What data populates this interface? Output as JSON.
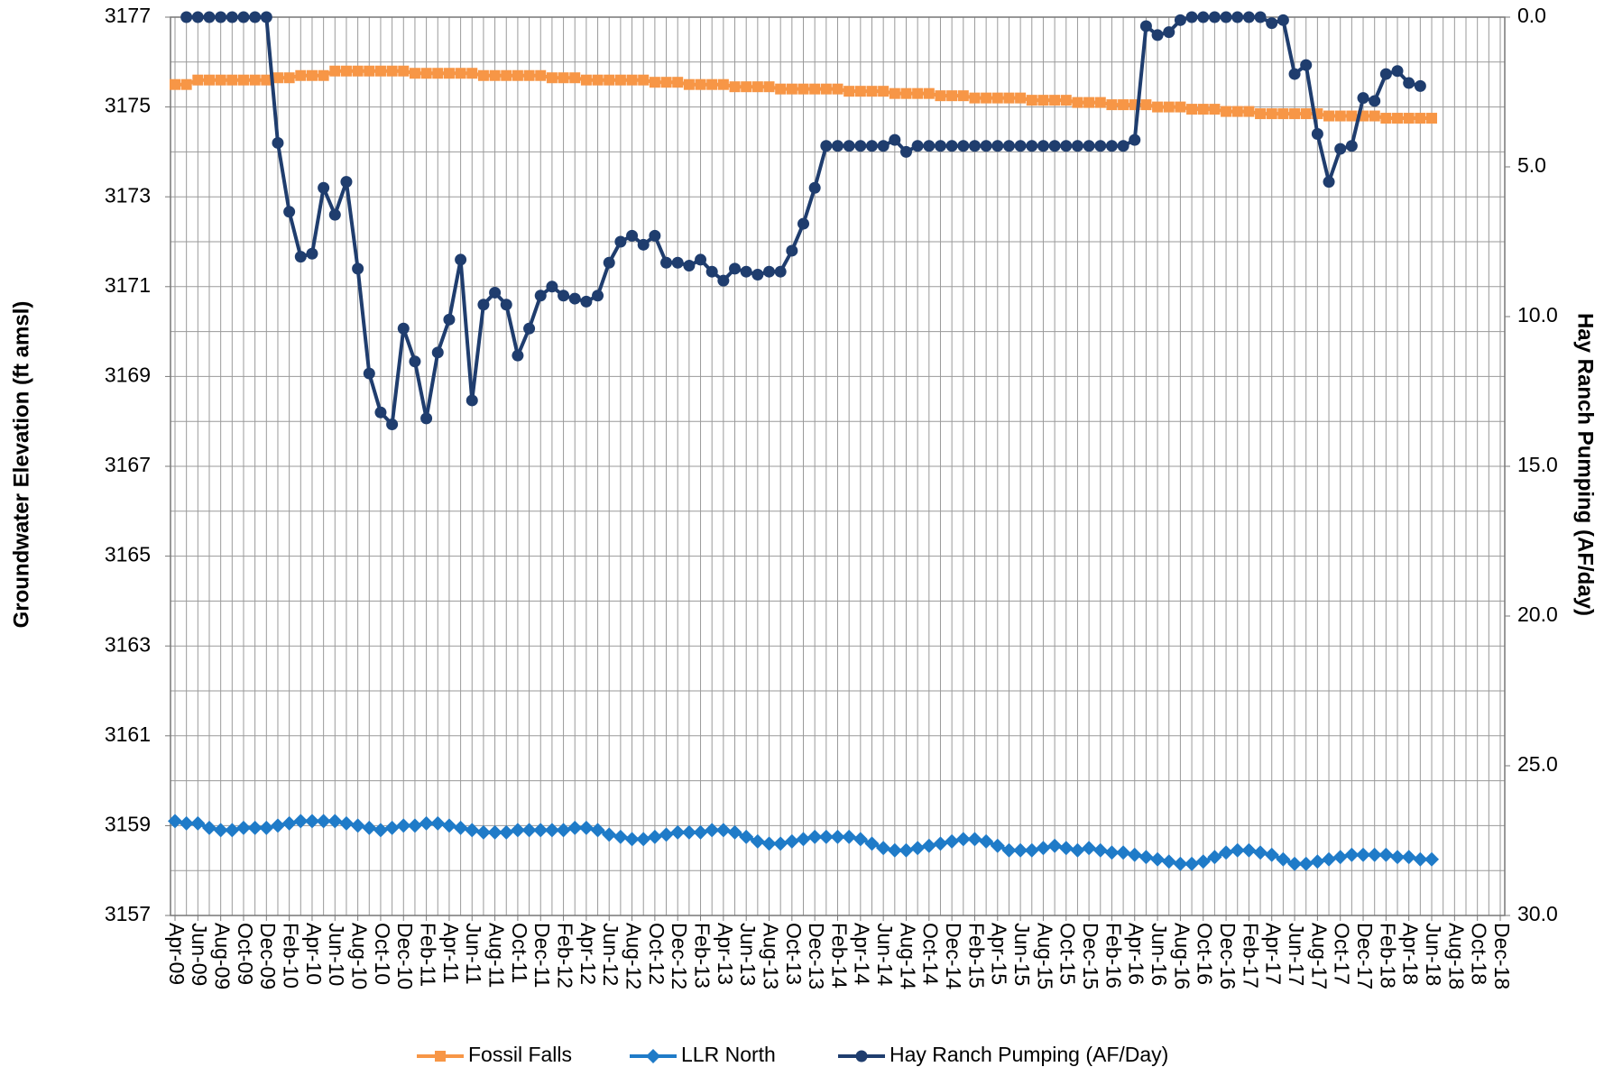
{
  "chart_data": {
    "type": "line",
    "y_label": "Groundwater Elevation (ft amsl)",
    "y2_label": "Hay Ranch Pumping (AF/day)",
    "x": [
      "2009-04",
      "2009-05",
      "2009-06",
      "2009-07",
      "2009-08",
      "2009-09",
      "2009-10",
      "2009-11",
      "2009-12",
      "2010-01",
      "2010-02",
      "2010-03",
      "2010-04",
      "2010-05",
      "2010-06",
      "2010-07",
      "2010-08",
      "2010-09",
      "2010-10",
      "2010-11",
      "2010-12",
      "2011-01",
      "2011-02",
      "2011-03",
      "2011-04",
      "2011-05",
      "2011-06",
      "2011-07",
      "2011-08",
      "2011-09",
      "2011-10",
      "2011-11",
      "2011-12",
      "2012-01",
      "2012-02",
      "2012-03",
      "2012-04",
      "2012-05",
      "2012-06",
      "2012-07",
      "2012-08",
      "2012-09",
      "2012-10",
      "2012-11",
      "2012-12",
      "2013-01",
      "2013-02",
      "2013-03",
      "2013-04",
      "2013-05",
      "2013-06",
      "2013-07",
      "2013-08",
      "2013-09",
      "2013-10",
      "2013-11",
      "2013-12",
      "2014-01",
      "2014-02",
      "2014-03",
      "2014-04",
      "2014-05",
      "2014-06",
      "2014-07",
      "2014-08",
      "2014-09",
      "2014-10",
      "2014-11",
      "2014-12",
      "2015-01",
      "2015-02",
      "2015-03",
      "2015-04",
      "2015-05",
      "2015-06",
      "2015-07",
      "2015-08",
      "2015-09",
      "2015-10",
      "2015-11",
      "2015-12",
      "2016-01",
      "2016-02",
      "2016-03",
      "2016-04",
      "2016-05",
      "2016-06",
      "2016-07",
      "2016-08",
      "2016-09",
      "2016-10",
      "2016-11",
      "2016-12",
      "2017-01",
      "2017-02",
      "2017-03",
      "2017-04",
      "2017-05",
      "2017-06",
      "2017-07",
      "2017-08",
      "2017-09",
      "2017-10",
      "2017-11",
      "2017-12",
      "2018-01",
      "2018-02",
      "2018-03",
      "2018-04",
      "2018-05",
      "2018-06"
    ],
    "series": [
      {
        "name": "Fossil Falls",
        "color": "#f79646",
        "marker": "square",
        "axis": "y",
        "values": [
          3175.5,
          3175.5,
          3175.6,
          3175.6,
          3175.6,
          3175.6,
          3175.6,
          3175.6,
          3175.6,
          3175.65,
          3175.65,
          3175.7,
          3175.7,
          3175.7,
          3175.8,
          3175.8,
          3175.8,
          3175.8,
          3175.8,
          3175.8,
          3175.8,
          3175.75,
          3175.75,
          3175.75,
          3175.75,
          3175.75,
          3175.75,
          3175.7,
          3175.7,
          3175.7,
          3175.7,
          3175.7,
          3175.7,
          3175.65,
          3175.65,
          3175.65,
          3175.6,
          3175.6,
          3175.6,
          3175.6,
          3175.6,
          3175.6,
          3175.55,
          3175.55,
          3175.55,
          3175.5,
          3175.5,
          3175.5,
          3175.5,
          3175.45,
          3175.45,
          3175.45,
          3175.45,
          3175.4,
          3175.4,
          3175.4,
          3175.4,
          3175.4,
          3175.4,
          3175.35,
          3175.35,
          3175.35,
          3175.35,
          3175.3,
          3175.3,
          3175.3,
          3175.3,
          3175.25,
          3175.25,
          3175.25,
          3175.2,
          3175.2,
          3175.2,
          3175.2,
          3175.2,
          3175.15,
          3175.15,
          3175.15,
          3175.15,
          3175.1,
          3175.1,
          3175.1,
          3175.05,
          3175.05,
          3175.05,
          3175.05,
          3175.0,
          3175.0,
          3175.0,
          3174.95,
          3174.95,
          3174.95,
          3174.9,
          3174.9,
          3174.9,
          3174.85,
          3174.85,
          3174.85,
          3174.85,
          3174.85,
          3174.85,
          3174.8,
          3174.8,
          3174.8,
          3174.8,
          3174.8,
          3174.75,
          3174.75,
          3174.75,
          3174.75,
          3174.75
        ]
      },
      {
        "name": "LLR North",
        "color": "#1f7bc8",
        "marker": "diamond",
        "axis": "y",
        "values": [
          3159.1,
          3159.05,
          3159.05,
          3158.95,
          3158.9,
          3158.9,
          3158.95,
          3158.95,
          3158.95,
          3159.0,
          3159.05,
          3159.1,
          3159.1,
          3159.1,
          3159.1,
          3159.05,
          3159.0,
          3158.95,
          3158.9,
          3158.95,
          3159.0,
          3159.0,
          3159.05,
          3159.05,
          3159.0,
          3158.95,
          3158.9,
          3158.85,
          3158.85,
          3158.85,
          3158.9,
          3158.9,
          3158.9,
          3158.9,
          3158.9,
          3158.95,
          3158.95,
          3158.9,
          3158.8,
          3158.75,
          3158.7,
          3158.7,
          3158.75,
          3158.8,
          3158.85,
          3158.85,
          3158.85,
          3158.9,
          3158.9,
          3158.85,
          3158.75,
          3158.65,
          3158.6,
          3158.6,
          3158.65,
          3158.7,
          3158.75,
          3158.75,
          3158.75,
          3158.75,
          3158.7,
          3158.6,
          3158.5,
          3158.45,
          3158.45,
          3158.5,
          3158.55,
          3158.6,
          3158.65,
          3158.7,
          3158.7,
          3158.65,
          3158.55,
          3158.45,
          3158.45,
          3158.45,
          3158.5,
          3158.55,
          3158.5,
          3158.45,
          3158.5,
          3158.45,
          3158.4,
          3158.4,
          3158.35,
          3158.3,
          3158.25,
          3158.2,
          3158.15,
          3158.15,
          3158.2,
          3158.3,
          3158.4,
          3158.45,
          3158.45,
          3158.4,
          3158.35,
          3158.25,
          3158.15,
          3158.15,
          3158.2,
          3158.25,
          3158.3,
          3158.35,
          3158.35,
          3158.35,
          3158.35,
          3158.3,
          3158.3,
          3158.25,
          3158.25
        ]
      },
      {
        "name": "Hay Ranch Pumping (AF/Day)",
        "color": "#1f3d6e",
        "marker": "circle",
        "axis": "y2",
        "values": [
          null,
          0,
          0,
          0,
          0,
          0,
          0,
          0,
          0,
          4.2,
          6.5,
          8.0,
          7.9,
          5.7,
          6.6,
          5.5,
          8.4,
          11.9,
          13.2,
          13.6,
          10.4,
          11.5,
          13.4,
          11.2,
          10.1,
          8.1,
          12.8,
          9.6,
          9.2,
          9.6,
          11.3,
          10.4,
          9.3,
          9.0,
          9.3,
          9.4,
          9.5,
          9.3,
          8.2,
          7.5,
          7.3,
          7.6,
          7.3,
          8.2,
          8.2,
          8.3,
          8.1,
          8.5,
          8.8,
          8.4,
          8.5,
          8.6,
          8.5,
          8.5,
          7.8,
          6.9,
          5.7,
          4.3,
          4.3,
          4.3,
          4.3,
          4.3,
          4.3,
          4.1,
          4.5,
          4.3,
          4.3,
          4.3,
          4.3,
          4.3,
          4.3,
          4.3,
          4.3,
          4.3,
          4.3,
          4.3,
          4.3,
          4.3,
          4.3,
          4.3,
          4.3,
          4.3,
          4.3,
          4.3,
          4.1,
          0.3,
          0.6,
          0.5,
          0.1,
          0,
          0,
          0,
          0,
          0,
          0,
          0,
          0.2,
          0.1,
          1.9,
          1.6,
          3.9,
          5.5,
          4.4,
          4.3,
          2.7,
          2.8,
          1.9,
          1.8,
          2.2,
          2.3,
          null
        ]
      }
    ],
    "xlim": [
      "2009-04",
      "2018-12"
    ],
    "xticks": [
      {
        "value": "2009-04",
        "label": "Apr-09"
      },
      {
        "value": "2009-06",
        "label": "Jun-09"
      },
      {
        "value": "2009-08",
        "label": "Aug-09"
      },
      {
        "value": "2009-10",
        "label": "Oct-09"
      },
      {
        "value": "2009-12",
        "label": "Dec-09"
      },
      {
        "value": "2010-02",
        "label": "Feb-10"
      },
      {
        "value": "2010-04",
        "label": "Apr-10"
      },
      {
        "value": "2010-06",
        "label": "Jun-10"
      },
      {
        "value": "2010-08",
        "label": "Aug-10"
      },
      {
        "value": "2010-10",
        "label": "Oct-10"
      },
      {
        "value": "2010-12",
        "label": "Dec-10"
      },
      {
        "value": "2011-02",
        "label": "Feb-11"
      },
      {
        "value": "2011-04",
        "label": "Apr-11"
      },
      {
        "value": "2011-06",
        "label": "Jun-11"
      },
      {
        "value": "2011-08",
        "label": "Aug-11"
      },
      {
        "value": "2011-10",
        "label": "Oct-11"
      },
      {
        "value": "2011-12",
        "label": "Dec-11"
      },
      {
        "value": "2012-02",
        "label": "Feb-12"
      },
      {
        "value": "2012-04",
        "label": "Apr-12"
      },
      {
        "value": "2012-06",
        "label": "Jun-12"
      },
      {
        "value": "2012-08",
        "label": "Aug-12"
      },
      {
        "value": "2012-10",
        "label": "Oct-12"
      },
      {
        "value": "2012-12",
        "label": "Dec-12"
      },
      {
        "value": "2013-02",
        "label": "Feb-13"
      },
      {
        "value": "2013-04",
        "label": "Apr-13"
      },
      {
        "value": "2013-06",
        "label": "Jun-13"
      },
      {
        "value": "2013-08",
        "label": "Aug-13"
      },
      {
        "value": "2013-10",
        "label": "Oct-13"
      },
      {
        "value": "2013-12",
        "label": "Dec-13"
      },
      {
        "value": "2014-02",
        "label": "Feb-14"
      },
      {
        "value": "2014-04",
        "label": "Apr-14"
      },
      {
        "value": "2014-06",
        "label": "Jun-14"
      },
      {
        "value": "2014-08",
        "label": "Aug-14"
      },
      {
        "value": "2014-10",
        "label": "Oct-14"
      },
      {
        "value": "2014-12",
        "label": "Dec-14"
      },
      {
        "value": "2015-02",
        "label": "Feb-15"
      },
      {
        "value": "2015-04",
        "label": "Apr-15"
      },
      {
        "value": "2015-06",
        "label": "Jun-15"
      },
      {
        "value": "2015-08",
        "label": "Aug-15"
      },
      {
        "value": "2015-10",
        "label": "Oct-15"
      },
      {
        "value": "2015-12",
        "label": "Dec-15"
      },
      {
        "value": "2016-02",
        "label": "Feb-16"
      },
      {
        "value": "2016-04",
        "label": "Apr-16"
      },
      {
        "value": "2016-06",
        "label": "Jun-16"
      },
      {
        "value": "2016-08",
        "label": "Aug-16"
      },
      {
        "value": "2016-10",
        "label": "Oct-16"
      },
      {
        "value": "2016-12",
        "label": "Dec-16"
      },
      {
        "value": "2017-02",
        "label": "Feb-17"
      },
      {
        "value": "2017-04",
        "label": "Apr-17"
      },
      {
        "value": "2017-06",
        "label": "Jun-17"
      },
      {
        "value": "2017-08",
        "label": "Aug-17"
      },
      {
        "value": "2017-10",
        "label": "Oct-17"
      },
      {
        "value": "2017-12",
        "label": "Dec-17"
      },
      {
        "value": "2018-02",
        "label": "Feb-18"
      },
      {
        "value": "2018-04",
        "label": "Apr-18"
      },
      {
        "value": "2018-06",
        "label": "Jun-18"
      },
      {
        "value": "2018-08",
        "label": "Aug-18"
      },
      {
        "value": "2018-10",
        "label": "Oct-18"
      },
      {
        "value": "2018-12",
        "label": "Dec-18"
      }
    ],
    "ylim": [
      3157,
      3177
    ],
    "yticks": [
      3157,
      3159,
      3161,
      3163,
      3165,
      3167,
      3169,
      3171,
      3173,
      3175,
      3177
    ],
    "y2lim": [
      0,
      30
    ],
    "y2_inverted": true,
    "y2ticks": [
      {
        "value": 0,
        "label": "0.0"
      },
      {
        "value": 5,
        "label": "5.0"
      },
      {
        "value": 10,
        "label": "10.0"
      },
      {
        "value": 15,
        "label": "15.0"
      },
      {
        "value": 20,
        "label": "20.0"
      },
      {
        "value": 25,
        "label": "25.0"
      },
      {
        "value": 30,
        "label": "30.0"
      }
    ],
    "grid": true,
    "legend": "bottom"
  }
}
